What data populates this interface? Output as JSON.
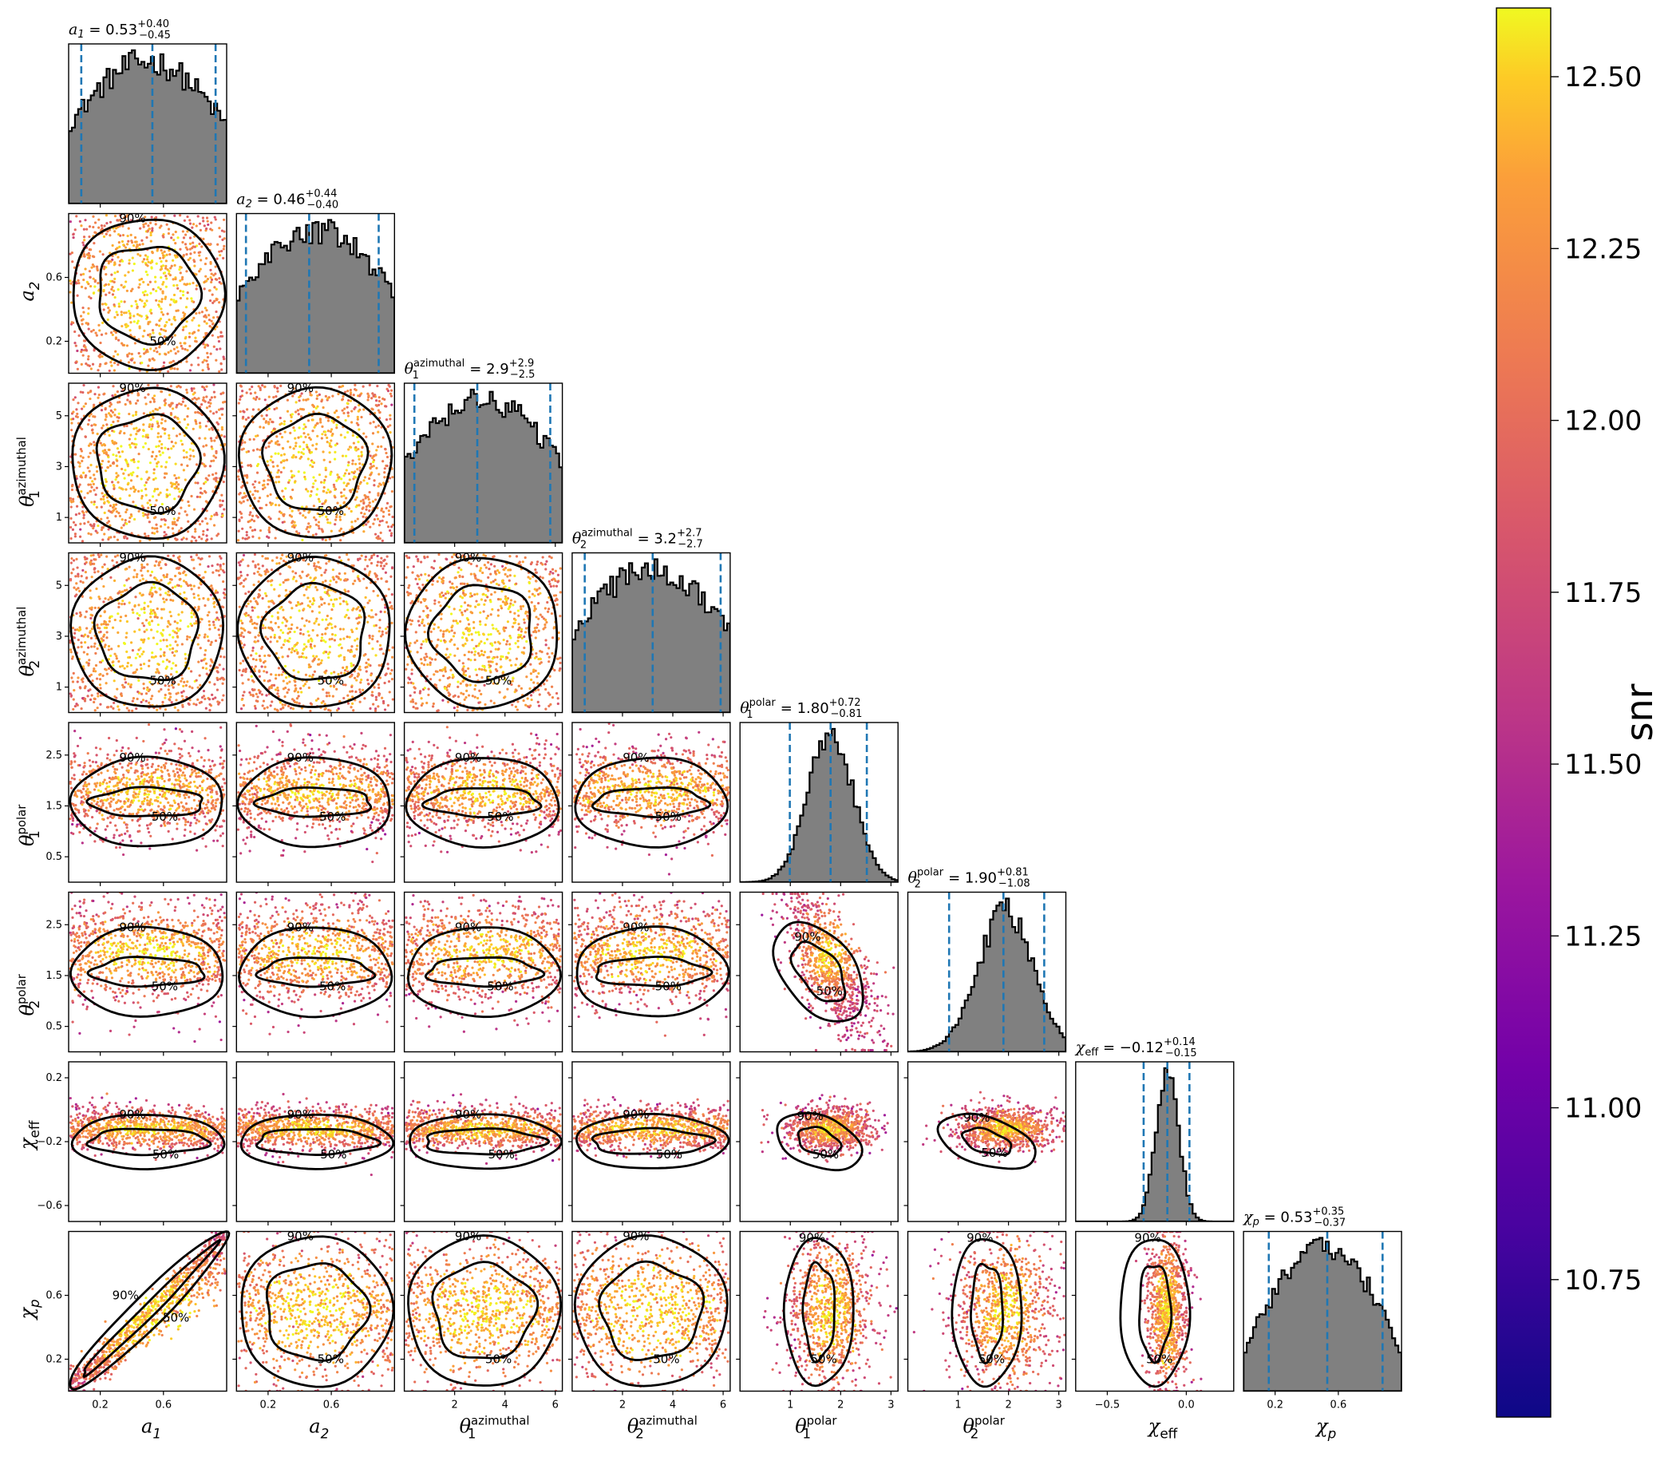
{
  "chart_data": {
    "type": "corner",
    "parameters": [
      {
        "key": "a1",
        "label": "a",
        "sub": "1",
        "sup": "",
        "title_value": "0.53",
        "err_plus": "+0.40",
        "err_minus": "−0.45",
        "range": [
          0,
          1
        ],
        "ticks": [
          0.2,
          0.6
        ],
        "tick_labels": [
          "0.2",
          "0.6"
        ],
        "median": 0.53,
        "q_low": 0.08,
        "q_high": 0.93,
        "dist": "flat"
      },
      {
        "key": "a2",
        "label": "a",
        "sub": "2",
        "sup": "",
        "title_value": "0.46",
        "err_plus": "+0.44",
        "err_minus": "−0.40",
        "range": [
          0,
          1
        ],
        "ticks": [
          0.2,
          0.6
        ],
        "tick_labels": [
          "0.2",
          "0.6"
        ],
        "median": 0.46,
        "q_low": 0.06,
        "q_high": 0.9,
        "dist": "flat"
      },
      {
        "key": "theta1_az",
        "label": "θ",
        "sub": "1",
        "sup": "azimuthal",
        "title_value": "2.9",
        "err_plus": "+2.9",
        "err_minus": "−2.5",
        "range": [
          0,
          6.28
        ],
        "ticks": [
          2,
          4,
          6
        ],
        "tick_labels": [
          "2",
          "4",
          "6"
        ],
        "yticks": [
          1,
          3,
          5
        ],
        "ytick_labels": [
          "1",
          "3",
          "5"
        ],
        "median": 2.9,
        "q_low": 0.4,
        "q_high": 5.8,
        "dist": "flat"
      },
      {
        "key": "theta2_az",
        "label": "θ",
        "sub": "2",
        "sup": "azimuthal",
        "title_value": "3.2",
        "err_plus": "+2.7",
        "err_minus": "−2.7",
        "range": [
          0,
          6.28
        ],
        "ticks": [
          2,
          4,
          6
        ],
        "tick_labels": [
          "2",
          "4",
          "6"
        ],
        "yticks": [
          1,
          3,
          5
        ],
        "ytick_labels": [
          "1",
          "3",
          "5"
        ],
        "median": 3.2,
        "q_low": 0.5,
        "q_high": 5.9,
        "dist": "flat"
      },
      {
        "key": "theta1_pol",
        "label": "θ",
        "sub": "1",
        "sup": "polar",
        "title_value": "1.80",
        "err_plus": "+0.72",
        "err_minus": "−0.81",
        "range": [
          0,
          3.14
        ],
        "ticks": [
          1,
          2,
          3
        ],
        "tick_labels": [
          "1",
          "2",
          "3"
        ],
        "yticks": [
          0.5,
          1.5,
          2.5
        ],
        "ytick_labels": [
          "0.5",
          "1.5",
          "2.5"
        ],
        "median": 1.8,
        "q_low": 0.99,
        "q_high": 2.52,
        "dist": "peak",
        "mu": 1.8,
        "sigma": 0.45
      },
      {
        "key": "theta2_pol",
        "label": "θ",
        "sub": "2",
        "sup": "polar",
        "title_value": "1.90",
        "err_plus": "+0.81",
        "err_minus": "−1.08",
        "range": [
          0,
          3.14
        ],
        "ticks": [
          1,
          2,
          3
        ],
        "tick_labels": [
          "1",
          "2",
          "3"
        ],
        "yticks": [
          0.5,
          1.5,
          2.5
        ],
        "ytick_labels": [
          "0.5",
          "1.5",
          "2.5"
        ],
        "median": 1.9,
        "q_low": 0.82,
        "q_high": 2.71,
        "dist": "peak",
        "mu": 1.95,
        "sigma": 0.55
      },
      {
        "key": "chi_eff",
        "label": "χ",
        "sub": "eff",
        "sup": "",
        "title_value": "−0.12",
        "err_plus": "+0.14",
        "err_minus": "−0.15",
        "range": [
          -0.7,
          0.3
        ],
        "ticks": [
          -0.5,
          0.0
        ],
        "tick_labels": [
          "−0.5",
          "0.0"
        ],
        "yticks": [
          -0.6,
          -0.2,
          0.2
        ],
        "ytick_labels": [
          "−0.6",
          "−0.2",
          "0.2"
        ],
        "median": -0.12,
        "q_low": -0.27,
        "q_high": 0.02,
        "dist": "peak",
        "mu": -0.12,
        "sigma": 0.07
      },
      {
        "key": "chi_p",
        "label": "χ",
        "sub": "p",
        "sup": "",
        "title_value": "0.53",
        "err_plus": "+0.35",
        "err_minus": "−0.37",
        "range": [
          0,
          1
        ],
        "ticks": [
          0.2,
          0.6
        ],
        "tick_labels": [
          "0.2",
          "0.6"
        ],
        "median": 0.53,
        "q_low": 0.16,
        "q_high": 0.88,
        "dist": "hump"
      }
    ],
    "contour_labels": [
      "50%",
      "90%"
    ],
    "colorbar": {
      "label": "snr",
      "range": [
        10.55,
        12.6
      ],
      "ticks": [
        10.75,
        11.0,
        11.25,
        11.5,
        11.75,
        12.0,
        12.25,
        12.5
      ],
      "tick_labels": [
        "10.75",
        "11.00",
        "11.25",
        "11.50",
        "11.75",
        "12.00",
        "12.25",
        "12.50"
      ],
      "colormap": "plasma"
    },
    "colors": {
      "histogram_fill": "#808080",
      "histogram_edge": "#000000",
      "quantile_line": "#1f77b4",
      "contour": "#000000"
    }
  }
}
